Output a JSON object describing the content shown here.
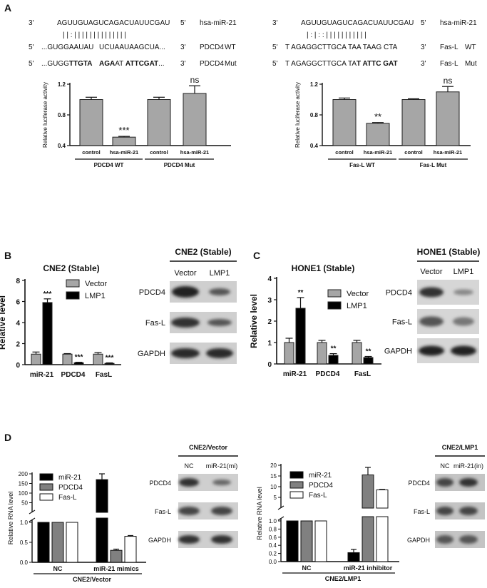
{
  "panels": {
    "A": {
      "letter": "A",
      "left": {
        "seq": {
          "mir": {
            "p_left": "3'",
            "seq": "AGUUGUAGUCAGACUAUUCGAU",
            "p_right": "5'",
            "name": "hsa-miR-21"
          },
          "pairing": "| | : |  |  | | | | | | | | | | | |",
          "wt": {
            "p_left": "5'",
            "seq_a": "...GUGGAAUAU",
            "seq_b": "UCUAAUAAGCUA...",
            "p_right": "3'",
            "name": "PDCD4",
            "tag": "WT"
          },
          "mut": {
            "p_left": "5'",
            "seq_a": "...GUGG",
            "seq_a_bold": "TTGTA",
            "seq_b_bold": "AGA",
            "seq_b2": "AT ",
            "seq_b3_bold": "ATTCGAT",
            "seq_b4": "...",
            "p_right": "3'",
            "name": "PDCD4",
            "tag": "Mut"
          }
        },
        "chart_data": {
          "type": "bar",
          "ylabel": "Relative luciferase activity",
          "ylim": [
            0.4,
            1.2
          ],
          "yticks": [
            "0.4",
            "0.8",
            "1.2"
          ],
          "categories": [
            "control",
            "hsa-miR-21",
            "control",
            "hsa-miR-21"
          ],
          "values": [
            1.0,
            0.51,
            1.0,
            1.08
          ],
          "errors": [
            0.03,
            0.01,
            0.03,
            0.1
          ],
          "significance": [
            "",
            "***",
            "",
            "ns"
          ],
          "groups": [
            "PDCD4 WT",
            "PDCD4 Mut"
          ],
          "bar_color": "#a6a6a6"
        }
      },
      "right": {
        "seq": {
          "mir": {
            "p_left": "3'",
            "seq": "AGUUGUAGUCAGACUAUUCGAU",
            "p_right": "5'",
            "name": "hsa-miR-21"
          },
          "pairing": "| : | : :  | | | | | | | | | | |",
          "wt": {
            "p_left": "5'",
            "seq_a": "T AGAGGCTTGCA TAA TAAG CTA",
            "p_right": "3'",
            "name": "Fas-L",
            "tag": "WT"
          },
          "mut": {
            "p_left": "5'",
            "seq_a": "T AGAGGCTTGCA TA",
            "seq_a_bold": "T ATTC GAT",
            "p_right": "3'",
            "name": "Fas-L",
            "tag": "Mut"
          }
        },
        "chart_data": {
          "type": "bar",
          "ylabel": "Relative luciferase activity",
          "ylim": [
            0.4,
            1.2
          ],
          "yticks": [
            "0.4",
            "0.8",
            "1.2"
          ],
          "categories": [
            "control",
            "hsa-miR-21",
            "control",
            "hsa-miR-21"
          ],
          "values": [
            1.0,
            0.69,
            1.0,
            1.1
          ],
          "errors": [
            0.02,
            0.01,
            0.01,
            0.07
          ],
          "significance": [
            "",
            "**",
            "",
            "ns"
          ],
          "groups": [
            "Fas-L WT",
            "Fas-L Mut"
          ],
          "bar_color": "#a6a6a6"
        }
      }
    },
    "B": {
      "letter": "B",
      "chart_data": {
        "type": "bar",
        "title": "CNE2 (Stable)",
        "ylabel": "Relative level",
        "ylim": [
          0,
          8
        ],
        "yticks": [
          "0",
          "2",
          "4",
          "6",
          "8"
        ],
        "categories": [
          "miR-21",
          "PDCD4",
          "FasL"
        ],
        "series": [
          {
            "name": "Vector",
            "values": [
              1.0,
              1.0,
              1.0
            ],
            "errors": [
              0.2,
              0.05,
              0.15
            ],
            "color": "#a6a6a6"
          },
          {
            "name": "LMP1",
            "values": [
              5.9,
              0.18,
              0.12
            ],
            "errors": [
              0.35,
              0.05,
              0.05
            ],
            "color": "#000000"
          }
        ],
        "significance": [
          "***",
          "***",
          "***"
        ]
      },
      "blot": {
        "title": "CNE2 (Stable)",
        "lanes": [
          "Vector",
          "LMP1"
        ],
        "rows": [
          "PDCD4",
          "Fas-L",
          "GAPDH"
        ]
      }
    },
    "C": {
      "letter": "C",
      "chart_data": {
        "type": "bar",
        "title": "HONE1 (Stable)",
        "ylabel": "Relative level",
        "ylim": [
          0,
          4
        ],
        "yticks": [
          "0",
          "1",
          "2",
          "3",
          "4"
        ],
        "categories": [
          "miR-21",
          "PDCD4",
          "FasL"
        ],
        "series": [
          {
            "name": "Vector",
            "values": [
              1.0,
              1.0,
              1.0
            ],
            "errors": [
              0.2,
              0.1,
              0.1
            ],
            "color": "#a6a6a6"
          },
          {
            "name": "LMP1",
            "values": [
              2.6,
              0.4,
              0.3
            ],
            "errors": [
              0.5,
              0.08,
              0.05
            ],
            "color": "#000000"
          }
        ],
        "significance": [
          "**",
          "**",
          "**"
        ]
      },
      "blot": {
        "title": "HONE1 (Stable)",
        "lanes": [
          "Vector",
          "LMP1"
        ],
        "rows": [
          "PDCD4",
          "Fas-L",
          "GAPDH"
        ]
      }
    },
    "D": {
      "letter": "D",
      "left": {
        "chart_data": {
          "type": "bar",
          "ylabel": "Relative RNA level",
          "yticks_low": [
            "0.0",
            "0.5",
            "1.0"
          ],
          "yticks_high": [
            "50",
            "100",
            "150",
            "200"
          ],
          "categories": [
            "NC",
            "miR-21 mimics"
          ],
          "series": [
            {
              "name": "miR-21",
              "values": [
                1.0,
                170
              ],
              "errors": [
                0,
                30
              ],
              "color": "#000000"
            },
            {
              "name": "PDCD4",
              "values": [
                1.0,
                0.3
              ],
              "errors": [
                0,
                0.03
              ],
              "color": "#808080"
            },
            {
              "name": "Fas-L",
              "values": [
                1.0,
                0.65
              ],
              "errors": [
                0,
                0.02
              ],
              "color": "#ffffff"
            }
          ],
          "group_label": "CNE2/Vector"
        },
        "blot": {
          "title": "CNE2/Vector",
          "lanes": [
            "NC",
            "miR-21(mi)"
          ],
          "rows": [
            "PDCD4",
            "Fas-L",
            "GAPDH"
          ]
        }
      },
      "right": {
        "chart_data": {
          "type": "bar",
          "ylabel": "Relative RNA level",
          "yticks_low": [
            "0.0",
            "0.2",
            "0.4",
            "0.6",
            "0.8",
            "1.0"
          ],
          "yticks_high": [
            "5",
            "10",
            "15",
            "20"
          ],
          "categories": [
            "NC",
            "miR-21 inhibitor"
          ],
          "series": [
            {
              "name": "miR-21",
              "values": [
                1.0,
                0.22
              ],
              "errors": [
                0,
                0.08
              ],
              "color": "#000000"
            },
            {
              "name": "PDCD4",
              "values": [
                1.0,
                15.5
              ],
              "errors": [
                0,
                3.5
              ],
              "color": "#808080"
            },
            {
              "name": "Fas-L",
              "values": [
                1.0,
                8.5
              ],
              "errors": [
                0,
                0.2
              ],
              "color": "#ffffff"
            }
          ],
          "group_label": "CNE2/LMP1"
        },
        "blot": {
          "title": "CNE2/LMP1",
          "lanes": [
            "NC",
            "miR-21(in)"
          ],
          "rows": [
            "PDCD4",
            "Fas-L",
            "GAPDH"
          ]
        }
      }
    }
  }
}
